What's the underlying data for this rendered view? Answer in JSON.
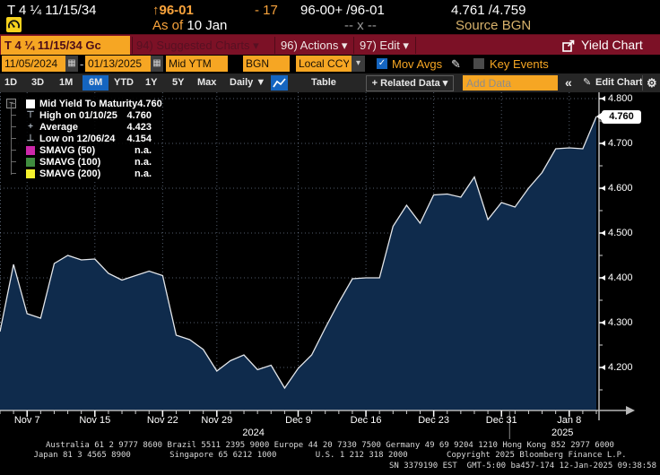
{
  "quote_strip": {
    "security": "T 4 ¼ 11/15/34",
    "price": "↑96-01",
    "change": "- 17",
    "bid_ask": "96-00+ /96-01",
    "yield_bid_ask": "4.761 /4.759",
    "as_of_label": "As of",
    "as_of_value": "10 Jan",
    "cross": "-- x --",
    "source": "Source BGN"
  },
  "menu_bar": {
    "security_field": "T 4 ¼ 11/15/34 Gc",
    "suggested_charts": "94) Suggested Charts ▾",
    "actions": "96) Actions ▾",
    "edit": "97) Edit ▾",
    "title": "Yield Chart"
  },
  "filter_bar": {
    "start_date": "11/05/2024",
    "date_separator": "-",
    "end_date": "01/13/2025",
    "field": "Mid YTM",
    "price_source": "BGN",
    "currency": "Local CCY",
    "mov_avgs_label": "Mov Avgs",
    "mov_avgs_checked": true,
    "key_events_label": "Key Events",
    "key_events_checked": false
  },
  "period_bar": {
    "ranges": [
      "1D",
      "3D",
      "1M",
      "6M",
      "YTD",
      "1Y",
      "5Y",
      "Max"
    ],
    "selected_range": "6M",
    "frequency": "Daily ▼",
    "table_label": "Table",
    "related_data": "+ Related Data ▾",
    "add_data_placeholder": "Add Data",
    "collapse": "«",
    "edit_chart": "Edit Chart"
  },
  "chart": {
    "current_tag": "4.760",
    "legend": [
      {
        "marker": "square",
        "color": "#ffffff",
        "label": "Mid Yield To Maturity",
        "value": "4.760"
      },
      {
        "marker": "high",
        "color": "#a9b2bd",
        "label": "High on 01/10/25",
        "value": "4.760"
      },
      {
        "marker": "avg",
        "color": "#a9b2bd",
        "label": "Average",
        "value": "4.423"
      },
      {
        "marker": "low",
        "color": "#a9b2bd",
        "label": "Low on 12/06/24",
        "value": "4.154"
      },
      {
        "marker": "square",
        "color": "#cb28a9",
        "label": "SMAVG (50)",
        "value": "n.a."
      },
      {
        "marker": "square",
        "color": "#3f8c3f",
        "label": "SMAVG (100)",
        "value": "n.a."
      },
      {
        "marker": "square",
        "color": "#f5f12e",
        "label": "SMAVG (200)",
        "value": "n.a."
      }
    ]
  },
  "chart_data": {
    "type": "area",
    "series_label": "Mid Yield To Maturity",
    "x": [
      "11/05",
      "11/06",
      "11/07",
      "11/08",
      "11/12",
      "11/13",
      "11/14",
      "11/15",
      "11/18",
      "11/19",
      "11/20",
      "11/21",
      "11/22",
      "11/25",
      "11/26",
      "11/27",
      "11/29",
      "12/02",
      "12/03",
      "12/04",
      "12/05",
      "12/06",
      "12/09",
      "12/10",
      "12/11",
      "12/12",
      "12/13",
      "12/16",
      "12/17",
      "12/18",
      "12/19",
      "12/20",
      "12/23",
      "12/24",
      "12/26",
      "12/27",
      "12/30",
      "12/31",
      "01/02",
      "01/03",
      "01/06",
      "01/07",
      "01/08",
      "01/09",
      "01/10"
    ],
    "values": [
      4.28,
      4.43,
      4.32,
      4.31,
      4.432,
      4.45,
      4.44,
      4.442,
      4.41,
      4.395,
      4.405,
      4.415,
      4.405,
      4.272,
      4.262,
      4.24,
      4.192,
      4.215,
      4.228,
      4.195,
      4.205,
      4.154,
      4.198,
      4.228,
      4.288,
      4.345,
      4.398,
      4.4,
      4.4,
      4.515,
      4.562,
      4.522,
      4.585,
      4.587,
      4.58,
      4.625,
      4.53,
      4.568,
      4.558,
      4.6,
      4.635,
      4.688,
      4.69,
      4.688,
      4.76
    ],
    "ylim": [
      4.1,
      4.814
    ],
    "yticks": [
      {
        "v": 4.2,
        "label": "4.200"
      },
      {
        "v": 4.3,
        "label": "4.300"
      },
      {
        "v": 4.4,
        "label": "4.400"
      },
      {
        "v": 4.5,
        "label": "4.500"
      },
      {
        "v": 4.6,
        "label": "4.600"
      },
      {
        "v": 4.7,
        "label": "4.700"
      },
      {
        "v": 4.8,
        "label": "4.800"
      }
    ],
    "yticks_minor": [
      4.15,
      4.25,
      4.35,
      4.45,
      4.55,
      4.65,
      4.75
    ],
    "x_tick_labels": [
      {
        "index": 2,
        "label": "Nov 7"
      },
      {
        "index": 7,
        "label": "Nov 15"
      },
      {
        "index": 12,
        "label": "Nov 22"
      },
      {
        "index": 16,
        "label": "Nov 29"
      },
      {
        "index": 22,
        "label": "Dec 9"
      },
      {
        "index": 27,
        "label": "Dec 16"
      },
      {
        "index": 32,
        "label": "Dec 23"
      },
      {
        "index": 37,
        "label": "Dec 31"
      },
      {
        "index": 42,
        "label": "Jan 8"
      }
    ],
    "year_labels": [
      {
        "label": "2024",
        "center_index": 18.7
      },
      {
        "label": "2025",
        "center_index": 41.5
      }
    ],
    "year_divider_index": 37.6,
    "high": {
      "date": "01/10/25",
      "value": 4.76
    },
    "low": {
      "date": "12/06/24",
      "value": 4.154
    },
    "average": 4.423,
    "current_value": 4.76,
    "grid": "dotted",
    "legend_position": "top-left"
  },
  "colors": {
    "amber": "#f6a623",
    "menu_red": "#7c1126",
    "select_blue": "#1565c0",
    "area_fill": "#0f2b4c",
    "line": "#e3e6ea",
    "grid": "rgba(150,168,195,0.55)",
    "axis": "#b8b8b8",
    "smavg50": "#cb28a9",
    "smavg100": "#3f8c3f",
    "smavg200": "#f5f12e"
  },
  "footer": {
    "line1": "Australia 61 2 9777 8600 Brazil 5511 2395 9000 Europe 44 20 7330 7500 Germany 49 69 9204 1210 Hong Kong 852 2977 6000",
    "line2": "Japan 81 3 4565 8900        Singapore 65 6212 1000        U.S. 1 212 318 2000        Copyright 2025 Bloomberg Finance L.P.",
    "line3": "SN 3379190 EST  GMT-5:00 ba457-174 12-Jan-2025 09:38:58"
  }
}
